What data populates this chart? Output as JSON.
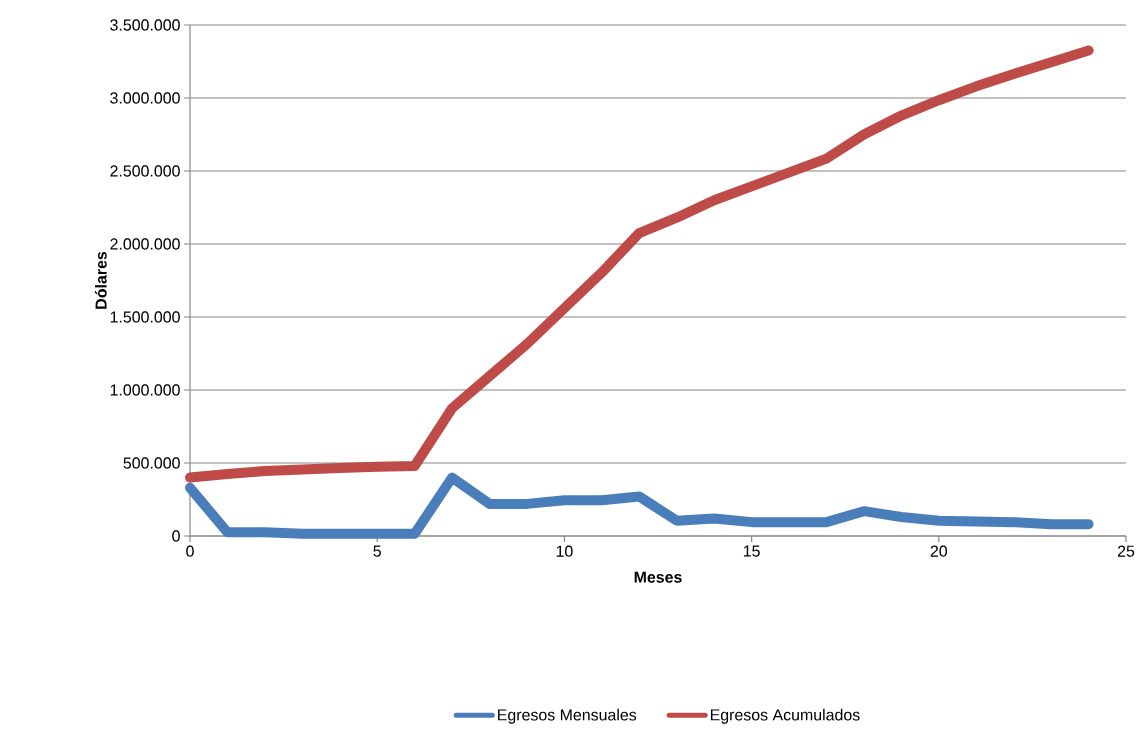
{
  "chart_data": {
    "type": "line",
    "xlabel": "Meses",
    "ylabel": "Dólares",
    "x": [
      0,
      1,
      2,
      3,
      4,
      5,
      6,
      7,
      8,
      9,
      10,
      11,
      12,
      13,
      14,
      15,
      16,
      17,
      18,
      19,
      20,
      21,
      22,
      23,
      24
    ],
    "series": [
      {
        "name": "Egresos Mensuales",
        "color": "#4a7ebb",
        "values": [
          330000,
          25000,
          25000,
          15000,
          15000,
          15000,
          15000,
          400000,
          220000,
          220000,
          245000,
          245000,
          270000,
          105000,
          120000,
          95000,
          95000,
          95000,
          170000,
          130000,
          105000,
          100000,
          95000,
          80000,
          80000
        ]
      },
      {
        "name": "Egresos Acumulados",
        "color": "#be4b48",
        "values": [
          400000,
          425000,
          445000,
          455000,
          465000,
          475000,
          480000,
          875000,
          1095000,
          1315000,
          1560000,
          1805000,
          2075000,
          2180000,
          2300000,
          2395000,
          2490000,
          2585000,
          2750000,
          2880000,
          2985000,
          3080000,
          3165000,
          3245000,
          3325000
        ]
      }
    ],
    "xlim": [
      0,
      25
    ],
    "xticks": [
      0,
      5,
      10,
      15,
      20,
      25
    ],
    "ylim": [
      0,
      3500000
    ],
    "yticks": [
      {
        "value": 0,
        "label": "0"
      },
      {
        "value": 500000,
        "label": "500.000"
      },
      {
        "value": 1000000,
        "label": "1.000.000"
      },
      {
        "value": 1500000,
        "label": "1.500.000"
      },
      {
        "value": 2000000,
        "label": "2.000.000"
      },
      {
        "value": 2500000,
        "label": "2.500.000"
      },
      {
        "value": 3000000,
        "label": "3.000.000"
      },
      {
        "value": 3500000,
        "label": "3.500.000"
      }
    ],
    "grid": "y",
    "legend": "bottom",
    "marker": "none",
    "line_style": "solid"
  }
}
